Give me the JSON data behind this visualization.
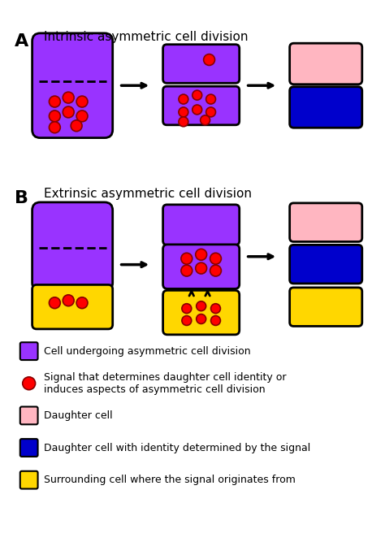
{
  "title_A": "Intrinsic asymmetric cell division",
  "title_B": "Extrinsic asymmetric cell division",
  "label_A": "A",
  "label_B": "B",
  "purple": "#9933FF",
  "pink": "#FFB6C1",
  "blue": "#0000CC",
  "yellow": "#FFD700",
  "red": "#FF0000",
  "black": "#000000",
  "white": "#FFFFFF",
  "legend_items": [
    {
      "color": "#9933FF",
      "type": "rect",
      "text": "Cell undergoing asymmetric cell division"
    },
    {
      "color": "#FF0000",
      "type": "circle",
      "text": "Signal that determines daughter cell identity or\ninduces aspects of asymmetric cell division"
    },
    {
      "color": "#FFB6C1",
      "type": "rect",
      "text": "Daughter cell"
    },
    {
      "color": "#0000CC",
      "type": "rect",
      "text": "Daughter cell with identity determined by the signal"
    },
    {
      "color": "#FFD700",
      "type": "rect",
      "text": "Surrounding cell where the signal originates from"
    }
  ]
}
